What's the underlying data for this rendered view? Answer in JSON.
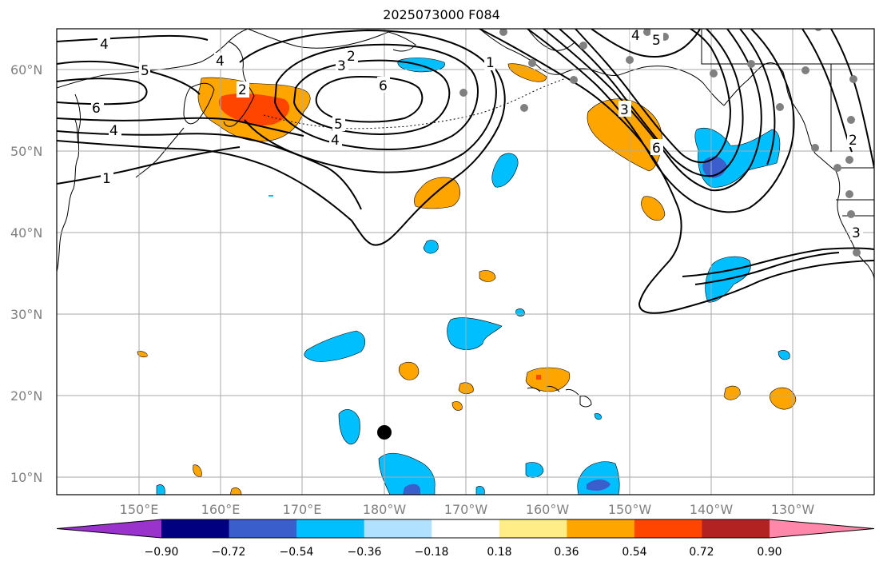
{
  "title": "2025073000 F084",
  "lat_labels": [
    "60°N",
    "50°N",
    "40°N",
    "30°N",
    "20°N",
    "10°N"
  ],
  "lon_labels": [
    "150°E",
    "160°E",
    "170°E",
    "180°W",
    "170°W",
    "160°W",
    "150°W",
    "140°W",
    "130°W"
  ],
  "colorbar": {
    "tick_labels": [
      "−0.90",
      "−0.72",
      "−0.54",
      "−0.36",
      "−0.18",
      "0.18",
      "0.36",
      "0.54",
      "0.72",
      "0.90"
    ],
    "colors": [
      "#9933cc",
      "#000080",
      "#3a5fcd",
      "#00bfff",
      "#b0e2ff",
      "#ffffff",
      "#ffee88",
      "#ffa500",
      "#ff4500",
      "#b22222",
      "#ff88aa"
    ]
  },
  "contour_labels": [
    "4",
    "5",
    "6",
    "4",
    "1",
    "4",
    "3",
    "2",
    "6",
    "5",
    "4",
    "2",
    "1",
    "3",
    "6",
    "4",
    "5",
    "2",
    "3"
  ],
  "colors": {
    "orange": "#ffa500",
    "red_orange": "#ff4500",
    "light_orange": "#ffbb33",
    "cyan": "#00bfff",
    "blue": "#3a5fcd",
    "station": "#808080"
  }
}
